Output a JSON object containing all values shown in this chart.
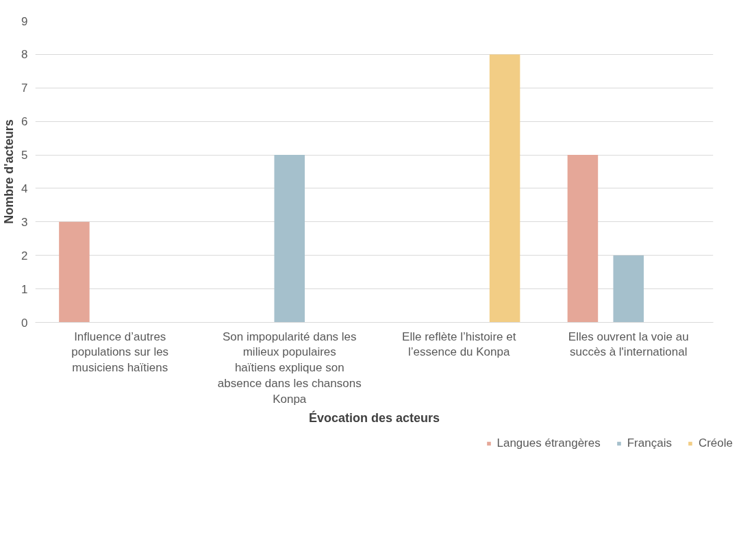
{
  "chart_data": {
    "type": "bar",
    "xlabel": "Évocation des acteurs",
    "ylabel": "Nombre d'acteurs",
    "categories": [
      "Influence d’autres populations sur les musiciens haïtiens",
      "Son impopularité dans les milieux populaires haïtiens explique son absence dans les chansons Konpa",
      "Elle reflète l’histoire et l’essence du Konpa",
      "Elles ouvrent la voie au succès à l'international"
    ],
    "series": [
      {
        "name": "Langues étrangères",
        "color": "#e5a798",
        "values": [
          3,
          null,
          null,
          5
        ]
      },
      {
        "name": "Français",
        "color": "#a5c0cc",
        "values": [
          null,
          5,
          null,
          2
        ]
      },
      {
        "name": "Créole",
        "color": "#f2cd85",
        "values": [
          null,
          null,
          8,
          null
        ]
      }
    ],
    "ylim": [
      0,
      9
    ],
    "yticks": [
      0,
      1,
      2,
      3,
      4,
      5,
      6,
      7,
      8,
      9
    ],
    "grid": "y",
    "legend": "bottom right"
  }
}
